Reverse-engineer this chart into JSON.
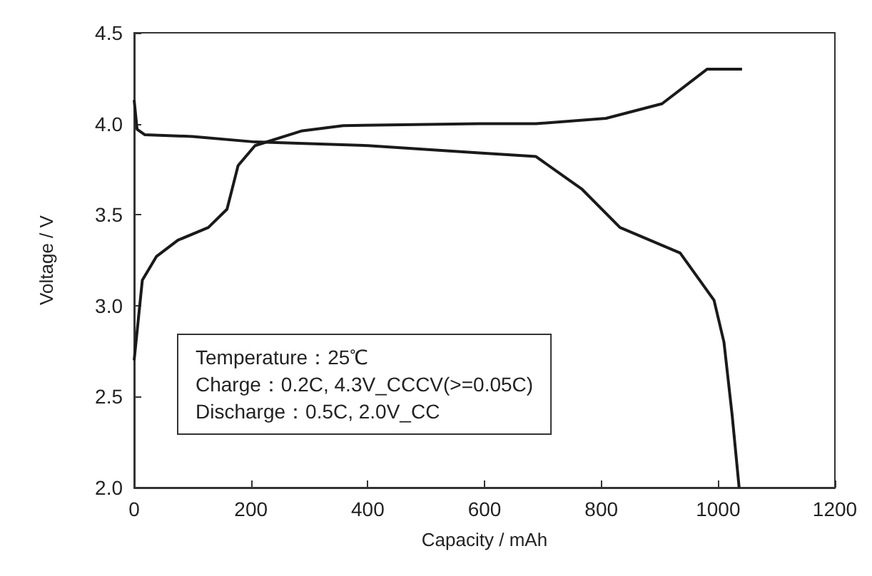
{
  "chart_data": {
    "type": "line",
    "xlabel": "Capacity / mAh",
    "ylabel": "Voltage / V",
    "xlim": [
      0,
      1200
    ],
    "xticks": [
      0,
      200,
      400,
      600,
      800,
      1000,
      1200
    ],
    "ylim": [
      2.0,
      4.5
    ],
    "yticks": [
      {
        "value": 2.0,
        "label": "2.0"
      },
      {
        "value": 2.5,
        "label": "2.5"
      },
      {
        "value": 3.0,
        "label": "3.0"
      },
      {
        "value": 3.5,
        "label": "3.5"
      },
      {
        "value": 4.0,
        "label": "4.0"
      },
      {
        "value": 4.5,
        "label": "4.5"
      }
    ],
    "grid": false,
    "marker": "none",
    "line_style": "solid",
    "annotations": [
      "Temperature：25℃",
      "Charge：0.2C, 4.3V_CCCV(>=0.05C)",
      "Discharge：0.5C, 2.0V_CC"
    ],
    "series": [
      {
        "color": "#1a1a1a",
        "x": [
          0,
          14,
          38,
          75,
          127,
          159,
          178,
          207,
          286,
          358,
          591,
          688,
          808,
          904,
          981,
          1041
        ],
        "values": [
          2.7,
          3.14,
          3.27,
          3.36,
          3.43,
          3.53,
          3.77,
          3.88,
          3.96,
          3.99,
          4.0,
          4.0,
          4.03,
          4.11,
          4.3,
          4.3
        ]
      },
      {
        "color": "#1a1a1a",
        "x": [
          0,
          5,
          18,
          100,
          207,
          400,
          591,
          688,
          767,
          832,
          935,
          993,
          1010,
          1024,
          1036
        ],
        "values": [
          4.13,
          3.97,
          3.94,
          3.93,
          3.9,
          3.88,
          3.84,
          3.82,
          3.64,
          3.43,
          3.29,
          3.03,
          2.8,
          2.4,
          2.0
        ]
      }
    ]
  }
}
